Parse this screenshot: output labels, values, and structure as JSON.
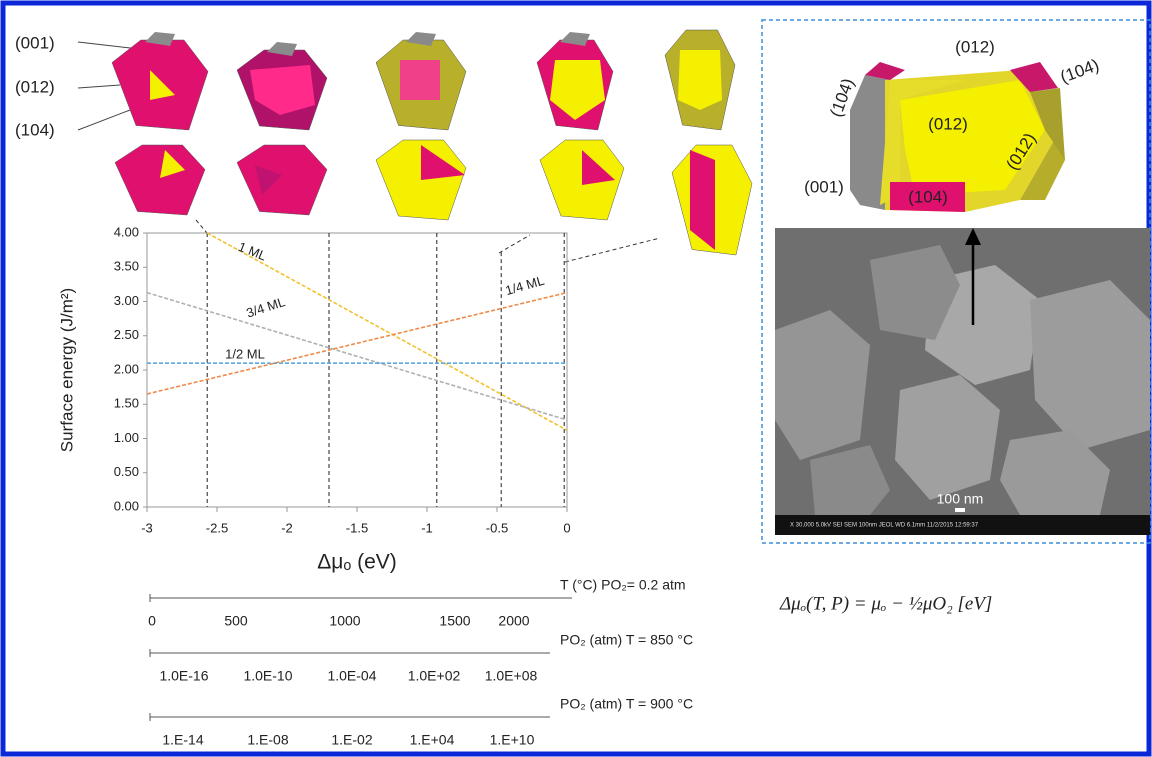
{
  "chart_data": {
    "type": "line",
    "ylabel": "Surface energy (J/m²)",
    "xlabel": "Δμₒ (eV)",
    "xlim": [
      -3,
      0
    ],
    "ylim": [
      0,
      4
    ],
    "xticks": [
      -3,
      -2.5,
      -2,
      -1.5,
      -1,
      -0.5,
      0
    ],
    "yticks": [
      {
        "value": 0,
        "label": "0.00"
      },
      {
        "value": 0.5,
        "label": "0.50"
      },
      {
        "value": 1,
        "label": "1.00"
      },
      {
        "value": 1.5,
        "label": "1.50"
      },
      {
        "value": 2,
        "label": "2.00"
      },
      {
        "value": 2.5,
        "label": "2.50"
      },
      {
        "value": 3,
        "label": "3.00"
      },
      {
        "value": 3.5,
        "label": "3.50"
      },
      {
        "value": 4,
        "label": "4.00"
      }
    ],
    "series": [
      {
        "name": "1 ML",
        "color": "#f2c12e",
        "x": [
          -2.57,
          0
        ],
        "values": [
          4.0,
          1.12
        ]
      },
      {
        "name": "3/4 ML",
        "color": "#b0b0b0",
        "x": [
          -3,
          0
        ],
        "values": [
          3.13,
          1.27
        ]
      },
      {
        "name": "1/2 ML",
        "color": "#5aa9e0",
        "x": [
          -3,
          0
        ],
        "values": [
          2.1,
          2.1
        ]
      },
      {
        "name": "1/4 ML",
        "color": "#ee8a4a",
        "x": [
          -3,
          0
        ],
        "values": [
          1.65,
          3.13
        ]
      }
    ],
    "vlines": [
      {
        "x": -2.57,
        "top": 4
      },
      {
        "x": -1.7,
        "top": 4
      },
      {
        "x": -0.93,
        "top": 4
      },
      {
        "x": -0.47,
        "top": 3.72
      },
      {
        "x": -0.02,
        "top": 4
      }
    ]
  },
  "scales": [
    {
      "label": "T (°C)  PO₂= 0.2 atm",
      "ticks": [
        0,
        500,
        1000,
        1500,
        2000
      ]
    },
    {
      "label": "PO₂ (atm)  T = 850 °C",
      "ticks": [
        {
          "value": 1e-16,
          "label": "1.0E-16"
        },
        {
          "value": 1e-10,
          "label": "1.0E-10"
        },
        {
          "value": 0.0001,
          "label": "1.0E-04"
        },
        {
          "value": 100,
          "label": "1.0E+02"
        },
        {
          "value": 100000000,
          "label": "1.0E+08"
        }
      ]
    },
    {
      "label": "PO₂ (atm)  T = 900 °C",
      "ticks": [
        {
          "value": 1e-14,
          "label": "1.E-14"
        },
        {
          "value": 1e-08,
          "label": "1.E-08"
        },
        {
          "value": 0.01,
          "label": "1.E-02"
        },
        {
          "value": 10000,
          "label": "1.E+04"
        },
        {
          "value": 10000000000,
          "label": "1.E+10"
        }
      ]
    }
  ],
  "facet_labels": [
    "(001)",
    "(012)",
    "(104)"
  ],
  "crystal_labels": [
    "(012)",
    "(104)",
    "(104)",
    "(012)",
    "(012)",
    "(001)",
    "(104)"
  ],
  "sem": {
    "scale_bar": "100 nm",
    "footer": "X 30,000   5.0kV  SEI   SEM   100nm JEOL  WD 6.1mm  11/2/2015  12:59:37"
  },
  "equation": "Δμₒ(T, P) = μₒ − ½μO₂ [eV]"
}
